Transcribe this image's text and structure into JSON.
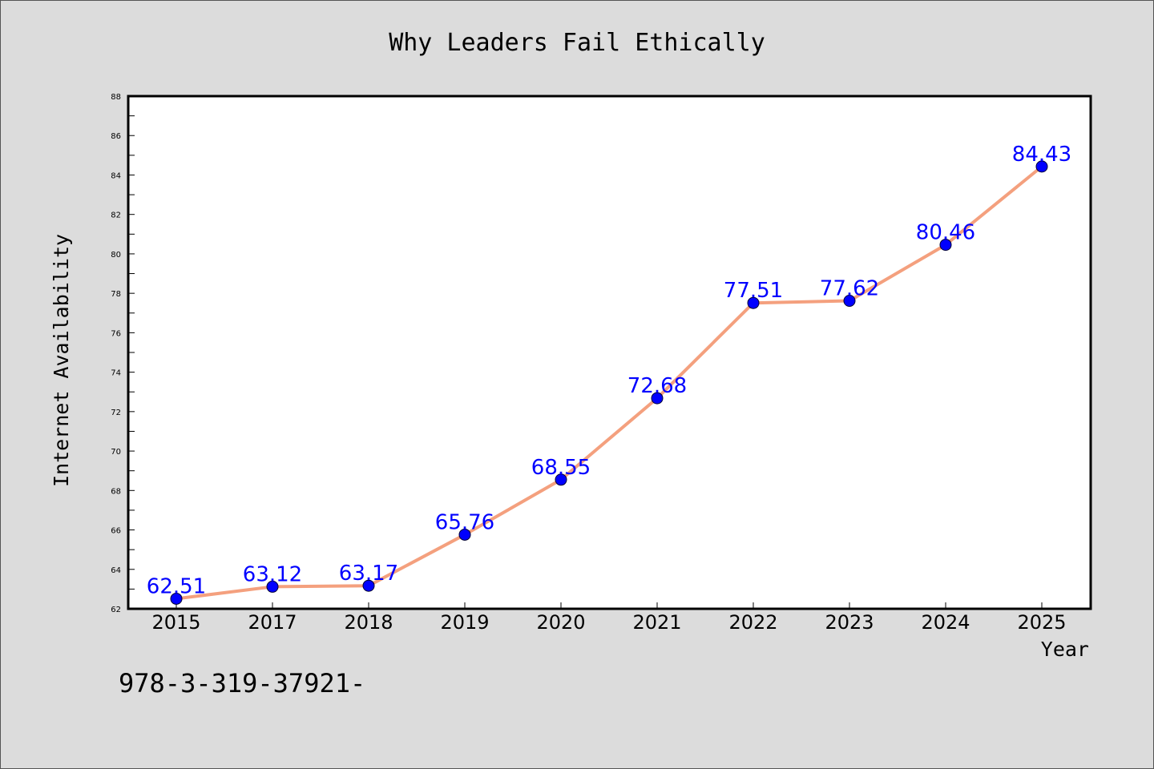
{
  "chart_data": {
    "type": "line",
    "title": "Why Leaders Fail Ethically",
    "xlabel": "Year",
    "ylabel": "Internet Availability",
    "categories": [
      "2015",
      "2017",
      "2018",
      "2019",
      "2020",
      "2021",
      "2022",
      "2023",
      "2024",
      "2025"
    ],
    "series": [
      {
        "values": [
          62.51,
          63.12,
          63.17,
          65.76,
          68.55,
          72.68,
          77.51,
          77.62,
          80.46,
          84.43
        ],
        "line_color": "#f4a07e",
        "marker_color": "#0000ff"
      }
    ],
    "data_labels": [
      "62.51",
      "63.12",
      "63.17",
      "65.76",
      "68.55",
      "72.68",
      "77.51",
      "77.62",
      "80.46",
      "84.43"
    ],
    "ylim": [
      62,
      88
    ],
    "yticks": [
      "62",
      "64",
      "66",
      "68",
      "70",
      "72",
      "74",
      "76",
      "78",
      "80",
      "82",
      "84",
      "86",
      "88"
    ],
    "grid": false,
    "legend": "none"
  },
  "footer": {
    "text": "978-3-319-37921-"
  },
  "colors": {
    "background": "#dcdcdc",
    "plot_background": "#ffffff",
    "line": "#f4a07e",
    "marker": "#0000ff",
    "data_label": "#0000ff"
  }
}
